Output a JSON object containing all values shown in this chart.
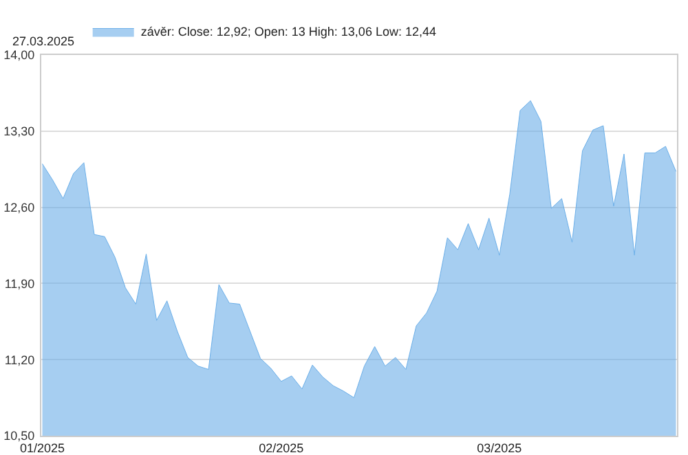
{
  "chart_data": {
    "type": "area",
    "annotations": [
      "27.03.2025"
    ],
    "categories": [
      "01/2025",
      null,
      null,
      null,
      null,
      null,
      null,
      null,
      null,
      null,
      null,
      null,
      null,
      null,
      null,
      null,
      null,
      null,
      null,
      null,
      null,
      null,
      null,
      "02/2025",
      null,
      null,
      null,
      null,
      null,
      null,
      null,
      null,
      null,
      null,
      null,
      null,
      null,
      null,
      null,
      null,
      null,
      null,
      null,
      null,
      "03/2025",
      null,
      null,
      null,
      null,
      null,
      null,
      null,
      null,
      null,
      null,
      null,
      null,
      null,
      null,
      null,
      null,
      null
    ],
    "series": [
      {
        "name": "závěr: Close: 12,92; Open: 13 High: 13,06 Low: 12,44",
        "color": "#6aaee8",
        "values": [
          13.0,
          12.85,
          12.68,
          12.91,
          13.01,
          12.35,
          12.33,
          12.14,
          11.86,
          11.71,
          12.17,
          11.56,
          11.74,
          11.46,
          11.22,
          11.14,
          11.11,
          11.89,
          11.72,
          11.71,
          11.46,
          11.21,
          11.12,
          11.0,
          11.05,
          10.93,
          11.15,
          11.04,
          10.96,
          10.91,
          10.85,
          11.14,
          11.32,
          11.14,
          11.22,
          11.11,
          11.51,
          11.63,
          11.83,
          12.32,
          12.21,
          12.45,
          12.21,
          12.5,
          12.16,
          12.72,
          13.49,
          13.58,
          13.39,
          12.59,
          12.68,
          12.28,
          13.12,
          13.31,
          13.35,
          12.61,
          13.09,
          12.16,
          13.1,
          13.1,
          13.16,
          12.93
        ]
      }
    ],
    "ylim": [
      10.5,
      14
    ],
    "yticks": [
      {
        "value": 10.5,
        "label": "10,50"
      },
      {
        "value": 11.2,
        "label": "11,20"
      },
      {
        "value": 11.9,
        "label": "11,90"
      },
      {
        "value": 12.6,
        "label": "12,60"
      },
      {
        "value": 13.3,
        "label": "13,30"
      },
      {
        "value": 14,
        "label": "14,00"
      }
    ],
    "grid": "y",
    "legend": "top left"
  }
}
